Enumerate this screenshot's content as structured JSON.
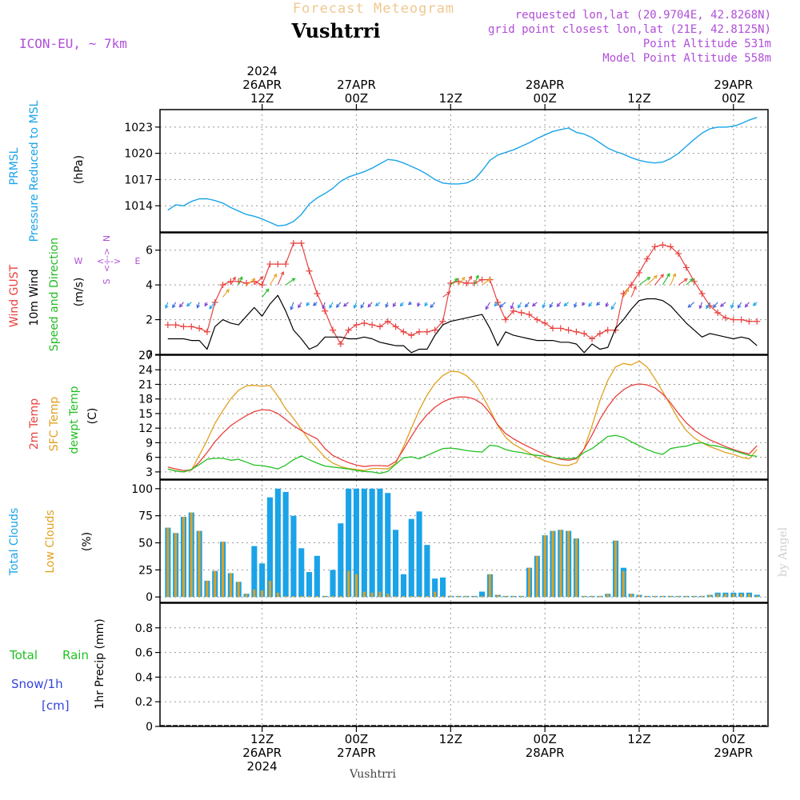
{
  "header": {
    "forecast_title": "Forecast Meteogram",
    "location": "Vushtrri",
    "model": "ICON-EU, ~ 7km",
    "requested": "requested lon,lat (20.9704E, 42.8268N)",
    "gridpoint": "grid point closest lon,lat (21E, 42.8125N)",
    "point_alt": "Point Altitude 531m",
    "model_alt": "Model Point Altitude 558m",
    "footer_location": "Vushtrri",
    "watermark": "by Angel"
  },
  "colors": {
    "pressure": "#1aa3e8",
    "gust": "#e8423f",
    "wind": "#000000",
    "wind_dir": "#22bb22",
    "temp": "#e8423f",
    "sfc_temp": "#e0a020",
    "dewpt": "#22c022",
    "total_clouds": "#1aa3e8",
    "low_clouds": "#e0a020",
    "rain": "#22c022",
    "snow": "#3344dd",
    "meta": "#b04ed8"
  },
  "time_axis": {
    "top_labels": [
      {
        "lines": [
          "2024",
          "26APR",
          "12Z"
        ],
        "t": 12
      },
      {
        "lines": [
          "27APR",
          "00Z"
        ],
        "t": 24
      },
      {
        "lines": [
          "12Z"
        ],
        "t": 36
      },
      {
        "lines": [
          "28APR",
          "00Z"
        ],
        "t": 48
      },
      {
        "lines": [
          "12Z"
        ],
        "t": 60
      },
      {
        "lines": [
          "29APR",
          "00Z"
        ],
        "t": 72
      }
    ],
    "bottom_labels": [
      {
        "lines": [
          "12Z",
          "26APR",
          "2024"
        ],
        "t": 12
      },
      {
        "lines": [
          "00Z",
          "27APR"
        ],
        "t": 24
      },
      {
        "lines": [
          "12Z"
        ],
        "t": 36
      },
      {
        "lines": [
          "00Z",
          "28APR"
        ],
        "t": 48
      },
      {
        "lines": [
          "12Z"
        ],
        "t": 60
      },
      {
        "lines": [
          "00Z",
          "29APR"
        ],
        "t": 72
      }
    ]
  },
  "chart_data": [
    {
      "type": "line",
      "id": "pressure",
      "ylabel_lines": [
        "PRMSL",
        "Pressure Reduced to MSL"
      ],
      "unit": "(hPa)",
      "ylim": [
        1011,
        1025
      ],
      "yticks": [
        1014,
        1017,
        1020,
        1023
      ],
      "t": [
        0,
        1,
        2,
        3,
        4,
        5,
        6,
        7,
        8,
        9,
        10,
        11,
        12,
        13,
        14,
        15,
        16,
        17,
        18,
        19,
        20,
        21,
        22,
        23,
        24,
        25,
        26,
        27,
        28,
        29,
        30,
        31,
        32,
        33,
        34,
        35,
        36,
        37,
        38,
        39,
        40,
        41,
        42,
        43,
        44,
        45,
        46,
        47,
        48,
        49,
        50,
        51,
        52,
        53,
        54,
        55,
        56,
        57,
        58,
        59,
        60,
        61,
        62,
        63,
        64,
        65,
        66,
        67,
        68,
        69,
        70,
        71,
        72,
        73,
        74,
        75
      ],
      "values": [
        1013.5,
        1014.1,
        1014.0,
        1014.5,
        1014.8,
        1014.8,
        1014.6,
        1014.3,
        1013.8,
        1013.4,
        1013.0,
        1012.8,
        1012.5,
        1012.1,
        1011.7,
        1011.8,
        1012.2,
        1013.0,
        1014.2,
        1014.9,
        1015.4,
        1016.0,
        1016.8,
        1017.3,
        1017.6,
        1017.9,
        1018.3,
        1018.8,
        1019.3,
        1019.2,
        1018.9,
        1018.5,
        1018.1,
        1017.6,
        1017.0,
        1016.6,
        1016.5,
        1016.5,
        1016.6,
        1017.0,
        1018.0,
        1019.2,
        1019.8,
        1020.1,
        1020.4,
        1020.8,
        1021.2,
        1021.7,
        1022.1,
        1022.5,
        1022.7,
        1022.9,
        1022.4,
        1022.2,
        1021.8,
        1021.2,
        1020.6,
        1020.2,
        1019.9,
        1019.5,
        1019.2,
        1019.0,
        1018.9,
        1019.0,
        1019.4,
        1020.0,
        1020.8,
        1021.6,
        1022.3,
        1022.8,
        1023.0,
        1023.0,
        1023.1,
        1023.4,
        1023.8,
        1024.1
      ],
      "series_name": "PRMSL"
    },
    {
      "type": "line",
      "id": "wind",
      "ylabel_lines": [
        "Wind GUST",
        "10m Wind",
        "Speed and Direction"
      ],
      "unit": "(m/s)",
      "ylim": [
        0,
        7
      ],
      "yticks": [
        0,
        2,
        4,
        6
      ],
      "compass": {
        "n": "N",
        "s": "S",
        "w": "W",
        "e": "E",
        "arrow": "<--->"
      },
      "t": [
        0,
        1,
        2,
        3,
        4,
        5,
        6,
        7,
        8,
        9,
        10,
        11,
        12,
        13,
        14,
        15,
        16,
        17,
        18,
        19,
        20,
        21,
        22,
        23,
        24,
        25,
        26,
        27,
        28,
        29,
        30,
        31,
        32,
        33,
        34,
        35,
        36,
        37,
        38,
        39,
        40,
        41,
        42,
        43,
        44,
        45,
        46,
        47,
        48,
        49,
        50,
        51,
        52,
        53,
        54,
        55,
        56,
        57,
        58,
        59,
        60,
        61,
        62,
        63,
        64,
        65,
        66,
        67,
        68,
        69,
        70,
        71,
        72,
        73,
        74,
        75
      ],
      "gust": [
        1.7,
        1.7,
        1.6,
        1.6,
        1.5,
        1.3,
        3.0,
        4.0,
        4.2,
        4.2,
        4.1,
        4.2,
        4.0,
        5.2,
        5.2,
        5.2,
        6.4,
        6.4,
        4.8,
        3.5,
        2.5,
        1.4,
        0.6,
        1.4,
        1.7,
        1.8,
        1.7,
        1.6,
        1.9,
        1.6,
        1.3,
        1.1,
        1.3,
        1.3,
        1.4,
        1.9,
        4.1,
        4.2,
        4.1,
        4.1,
        4.3,
        4.3,
        3.0,
        2.0,
        2.5,
        2.4,
        2.3,
        2.0,
        1.8,
        1.5,
        1.5,
        1.4,
        1.3,
        1.2,
        0.9,
        1.2,
        1.4,
        1.4,
        3.5,
        4.0,
        4.7,
        5.5,
        6.2,
        6.3,
        6.2,
        5.8,
        5.0,
        4.2,
        3.5,
        2.8,
        2.4,
        2.1,
        2.0,
        2.0,
        1.9,
        1.9
      ],
      "wind": [
        0.9,
        0.9,
        0.9,
        0.8,
        0.8,
        0.3,
        1.6,
        2.0,
        1.8,
        1.7,
        2.2,
        2.7,
        2.2,
        2.9,
        3.4,
        2.5,
        1.4,
        0.9,
        0.3,
        0.5,
        1.0,
        1.0,
        1.0,
        0.9,
        0.9,
        1.0,
        0.9,
        0.7,
        0.6,
        0.5,
        0.5,
        0.1,
        0.3,
        0.3,
        1.1,
        1.7,
        1.9,
        2.0,
        2.1,
        2.2,
        2.3,
        1.5,
        0.5,
        1.3,
        1.1,
        1.0,
        0.9,
        0.8,
        0.8,
        0.8,
        0.7,
        0.7,
        0.6,
        0.1,
        0.6,
        0.3,
        0.4,
        1.5,
        2.0,
        2.6,
        3.1,
        3.2,
        3.2,
        3.1,
        2.8,
        2.3,
        1.8,
        1.4,
        1.0,
        1.2,
        1.1,
        1.0,
        0.9,
        1.0,
        0.9,
        0.5
      ],
      "gust_name": "Wind GUST",
      "wind_name": "10m Wind"
    },
    {
      "type": "line",
      "id": "temperature",
      "ylabel_lines": [
        "2m Temp",
        "SFC Temp",
        "dewpt Temp"
      ],
      "unit": "(C)",
      "ylim": [
        1.5,
        27
      ],
      "yticks": [
        3,
        6,
        9,
        12,
        15,
        18,
        21,
        24,
        27
      ],
      "t": [
        0,
        1,
        2,
        3,
        4,
        5,
        6,
        7,
        8,
        9,
        10,
        11,
        12,
        13,
        14,
        15,
        16,
        17,
        18,
        19,
        20,
        21,
        22,
        23,
        24,
        25,
        26,
        27,
        28,
        29,
        30,
        31,
        32,
        33,
        34,
        35,
        36,
        37,
        38,
        39,
        40,
        41,
        42,
        43,
        44,
        45,
        46,
        47,
        48,
        49,
        50,
        51,
        52,
        53,
        54,
        55,
        56,
        57,
        58,
        59,
        60,
        61,
        62,
        63,
        64,
        65,
        66,
        67,
        68,
        69,
        70,
        71,
        72,
        73,
        74,
        75
      ],
      "temp2m": [
        4.0,
        3.6,
        3.3,
        3.4,
        5.0,
        7.0,
        9.2,
        11.0,
        12.5,
        13.6,
        14.6,
        15.4,
        15.8,
        15.7,
        15.0,
        13.8,
        12.5,
        11.5,
        10.6,
        9.8,
        7.8,
        6.4,
        5.6,
        4.9,
        4.4,
        4.1,
        4.3,
        4.3,
        4.2,
        5.1,
        7.6,
        10.3,
        12.8,
        14.8,
        16.3,
        17.4,
        18.1,
        18.4,
        18.4,
        18.0,
        17.0,
        15.1,
        12.7,
        10.9,
        9.8,
        8.9,
        8.1,
        7.3,
        6.6,
        6.0,
        5.6,
        5.4,
        5.7,
        7.7,
        10.6,
        13.8,
        16.4,
        18.5,
        19.9,
        20.8,
        21.1,
        20.9,
        20.3,
        19.0,
        17.2,
        15.0,
        13.1,
        11.6,
        10.5,
        9.6,
        8.9,
        8.2,
        7.6,
        7.1,
        6.7,
        8.4
      ],
      "sfc": [
        3.6,
        3.2,
        3.0,
        3.4,
        6.4,
        9.5,
        13.0,
        15.6,
        18.0,
        19.8,
        20.7,
        20.8,
        20.6,
        20.8,
        18.6,
        16.0,
        14.0,
        11.8,
        9.5,
        7.8,
        6.0,
        4.8,
        4.1,
        3.7,
        3.5,
        3.3,
        3.7,
        3.7,
        3.6,
        4.7,
        8.2,
        12.0,
        15.7,
        18.8,
        21.2,
        22.8,
        23.7,
        23.6,
        22.8,
        21.3,
        18.8,
        15.8,
        12.5,
        10.1,
        8.7,
        7.8,
        6.9,
        6.0,
        5.3,
        4.8,
        4.4,
        4.3,
        4.9,
        7.8,
        12.5,
        17.7,
        21.8,
        24.6,
        25.3,
        25.0,
        25.8,
        24.6,
        22.2,
        19.5,
        16.7,
        13.8,
        11.5,
        10.0,
        9.0,
        8.2,
        7.6,
        7.0,
        6.6,
        6.0,
        5.7,
        7.6
      ],
      "dewpt": [
        3.6,
        3.2,
        3.0,
        3.5,
        4.5,
        5.6,
        5.8,
        5.8,
        5.4,
        5.6,
        5.0,
        4.4,
        4.3,
        4.0,
        3.6,
        4.4,
        5.5,
        6.3,
        5.5,
        4.8,
        4.2,
        4.0,
        3.8,
        3.6,
        3.3,
        3.1,
        3.0,
        2.7,
        3.1,
        4.6,
        5.9,
        6.1,
        5.7,
        6.4,
        7.1,
        7.8,
        7.9,
        7.7,
        7.4,
        7.2,
        7.1,
        8.5,
        8.3,
        7.6,
        7.2,
        7.0,
        6.6,
        6.4,
        6.2,
        6.0,
        5.8,
        5.7,
        5.9,
        7.0,
        7.8,
        9.0,
        10.3,
        10.5,
        10.1,
        9.2,
        8.4,
        7.6,
        7.0,
        6.6,
        7.8,
        8.1,
        8.3,
        8.8,
        9.0,
        8.5,
        8.3,
        7.9,
        7.4,
        6.9,
        6.4,
        6.2
      ],
      "temp_name": "2m Temp",
      "sfc_name": "SFC Temp",
      "dewpt_name": "dewpt Temp"
    },
    {
      "type": "bar",
      "id": "clouds",
      "ylabel_lines": [
        "Total Clouds",
        "Low Clouds"
      ],
      "unit": "(%)",
      "ylim": [
        -5,
        108
      ],
      "yticks": [
        0,
        25,
        50,
        75,
        100
      ],
      "t": [
        0,
        1,
        2,
        3,
        4,
        5,
        6,
        7,
        8,
        9,
        10,
        11,
        12,
        13,
        14,
        15,
        16,
        17,
        18,
        19,
        20,
        21,
        22,
        23,
        24,
        25,
        26,
        27,
        28,
        29,
        30,
        31,
        32,
        33,
        34,
        35,
        36,
        37,
        38,
        39,
        40,
        41,
        42,
        43,
        44,
        45,
        46,
        47,
        48,
        49,
        50,
        51,
        52,
        53,
        54,
        55,
        56,
        57,
        58,
        59,
        60,
        61,
        62,
        63,
        64,
        65,
        66,
        67,
        68,
        69,
        70,
        71,
        72,
        73,
        74,
        75
      ],
      "total": [
        64,
        59,
        74,
        78,
        61,
        15,
        24,
        51,
        22,
        14,
        3,
        47,
        31,
        92,
        100,
        97,
        75,
        45,
        23,
        38,
        1,
        25,
        68,
        100,
        100,
        100,
        100,
        100,
        96,
        62,
        21,
        72,
        79,
        48,
        17,
        18,
        1,
        1,
        1,
        1,
        5,
        21,
        2,
        1,
        1,
        1,
        27,
        38,
        57,
        61,
        62,
        61,
        54,
        1,
        1,
        1,
        3,
        52,
        27,
        3,
        2,
        1,
        1,
        1,
        1,
        1,
        1,
        1,
        1,
        2,
        4,
        4,
        4,
        4,
        4,
        2
      ],
      "low": [
        64,
        59,
        74,
        78,
        61,
        15,
        24,
        51,
        22,
        14,
        3,
        7,
        6,
        15,
        4,
        1,
        1,
        1,
        1,
        1,
        1,
        1,
        1,
        24,
        21,
        5,
        4,
        5,
        3,
        1,
        1,
        1,
        1,
        1,
        5,
        1,
        1,
        1,
        1,
        1,
        1,
        21,
        2,
        1,
        1,
        1,
        27,
        38,
        57,
        61,
        62,
        61,
        54,
        1,
        1,
        1,
        3,
        52,
        24,
        3,
        2,
        1,
        1,
        1,
        1,
        1,
        1,
        1,
        1,
        2,
        3,
        3,
        3,
        3,
        3,
        1
      ],
      "total_name": "Total Clouds",
      "low_name": "Low Clouds"
    },
    {
      "type": "bar",
      "id": "precip",
      "ylabel_lines": [
        "Total Rain",
        "Snow/1h",
        "[cm]"
      ],
      "unit": "1hr Precip (mm)",
      "ylim": [
        0,
        1
      ],
      "yticks": [
        0,
        0.2,
        0.4,
        0.6,
        0.8
      ],
      "ytick_labels": [
        "0",
        "0.2",
        "0.4",
        "0.6",
        "0.8"
      ],
      "t": [
        0,
        1,
        2,
        3,
        4,
        5,
        6,
        7,
        8,
        9,
        10,
        11,
        12,
        13,
        14,
        15,
        16,
        17,
        18,
        19,
        20,
        21,
        22,
        23,
        24,
        25,
        26,
        27,
        28,
        29,
        30,
        31,
        32,
        33,
        34,
        35,
        36,
        37,
        38,
        39,
        40,
        41,
        42,
        43,
        44,
        45,
        46,
        47,
        48,
        49,
        50,
        51,
        52,
        53,
        54,
        55,
        56,
        57,
        58,
        59,
        60,
        61,
        62,
        63,
        64,
        65,
        66,
        67,
        68,
        69,
        70,
        71,
        72,
        73,
        74,
        75
      ],
      "rain": [
        0,
        0,
        0,
        0,
        0,
        0,
        0,
        0,
        0,
        0,
        0,
        0,
        0,
        0,
        0,
        0,
        0,
        0,
        0,
        0,
        0,
        0,
        0,
        0,
        0,
        0,
        0,
        0,
        0,
        0,
        0,
        0,
        0,
        0,
        0,
        0,
        0,
        0,
        0,
        0,
        0,
        0,
        0,
        0,
        0,
        0,
        0,
        0,
        0,
        0,
        0,
        0,
        0,
        0,
        0,
        0,
        0,
        0,
        0,
        0,
        0,
        0,
        0,
        0,
        0,
        0,
        0,
        0,
        0,
        0,
        0,
        0,
        0,
        0,
        0,
        0
      ],
      "rain_name": "Total Rain"
    }
  ]
}
